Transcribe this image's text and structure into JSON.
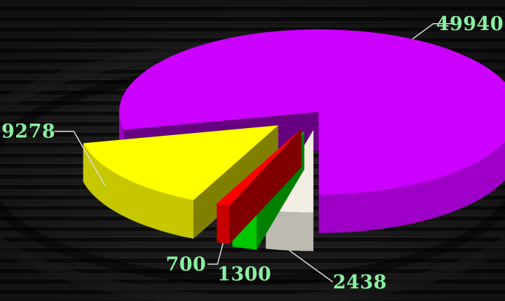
{
  "chart_data": {
    "type": "pie",
    "style": "3d-exploded",
    "title": "",
    "values": [
      49940,
      9278,
      700,
      1300,
      2438
    ],
    "labels": [
      "49940",
      "9278",
      "700",
      "1300",
      "2438"
    ],
    "colors": [
      "#cc00ff",
      "#ffff00",
      "#ff0000",
      "#00ff00",
      "#f2eee4"
    ],
    "label_color": "#88f0a0",
    "legend": "none"
  }
}
